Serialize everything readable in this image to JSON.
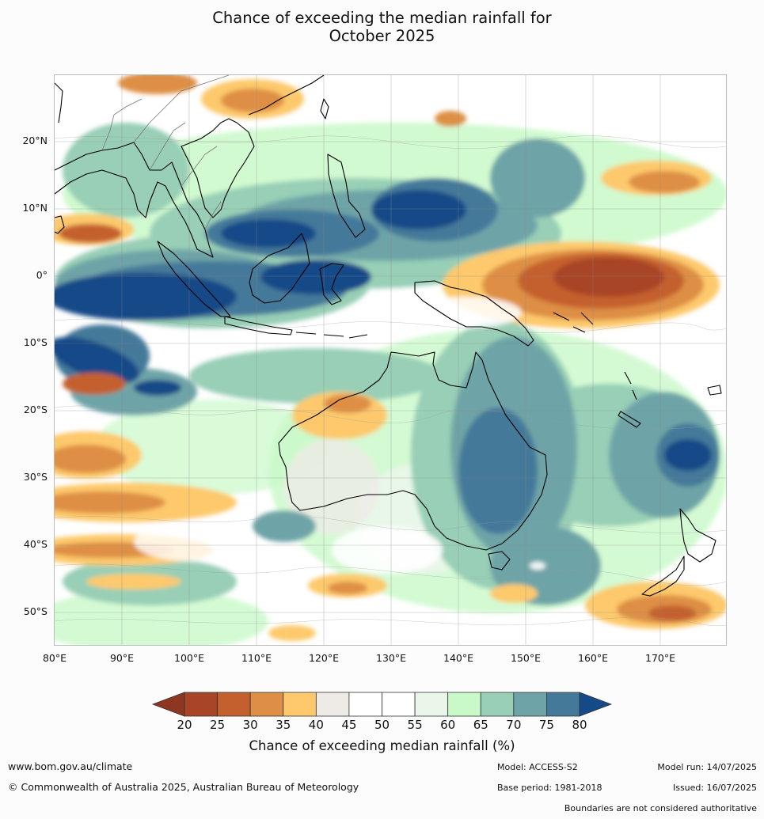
{
  "title_line1": "Chance of exceeding the median rainfall for",
  "title_line2": "October 2025",
  "lat_labels": [
    "20°N",
    "10°N",
    "0°",
    "10°S",
    "20°S",
    "30°S",
    "40°S",
    "50°S"
  ],
  "lon_labels": [
    "80°E",
    "90°E",
    "100°E",
    "110°E",
    "120°E",
    "130°E",
    "140°E",
    "150°E",
    "160°E",
    "170°E"
  ],
  "colorbar": {
    "ticks": [
      "20",
      "25",
      "30",
      "35",
      "40",
      "45",
      "50",
      "55",
      "60",
      "65",
      "70",
      "75",
      "80"
    ],
    "colors": [
      "#a84526",
      "#c4602e",
      "#de8f45",
      "#fdc96c",
      "#eeebe6",
      "#ffffff",
      "#ffffff",
      "#eaf6ea",
      "#c9f9c8",
      "#98cfb6",
      "#6ea4a7",
      "#44799a"
    ],
    "below_color": "#8f3620",
    "above_color": "#144a87",
    "label": "Chance of exceeding median rainfall (%)"
  },
  "footer": {
    "website": "www.bom.gov.au/climate",
    "copyright": "© Commonwealth of Australia 2025, Australian Bureau of Meteorology",
    "model": "Model: ACCESS-S2",
    "base_period": "Base period: 1981-2018",
    "model_run": "Model run: 14/07/2025",
    "issued": "Issued: 16/07/2025",
    "disclaimer": "Boundaries are not considered authoritative"
  }
}
